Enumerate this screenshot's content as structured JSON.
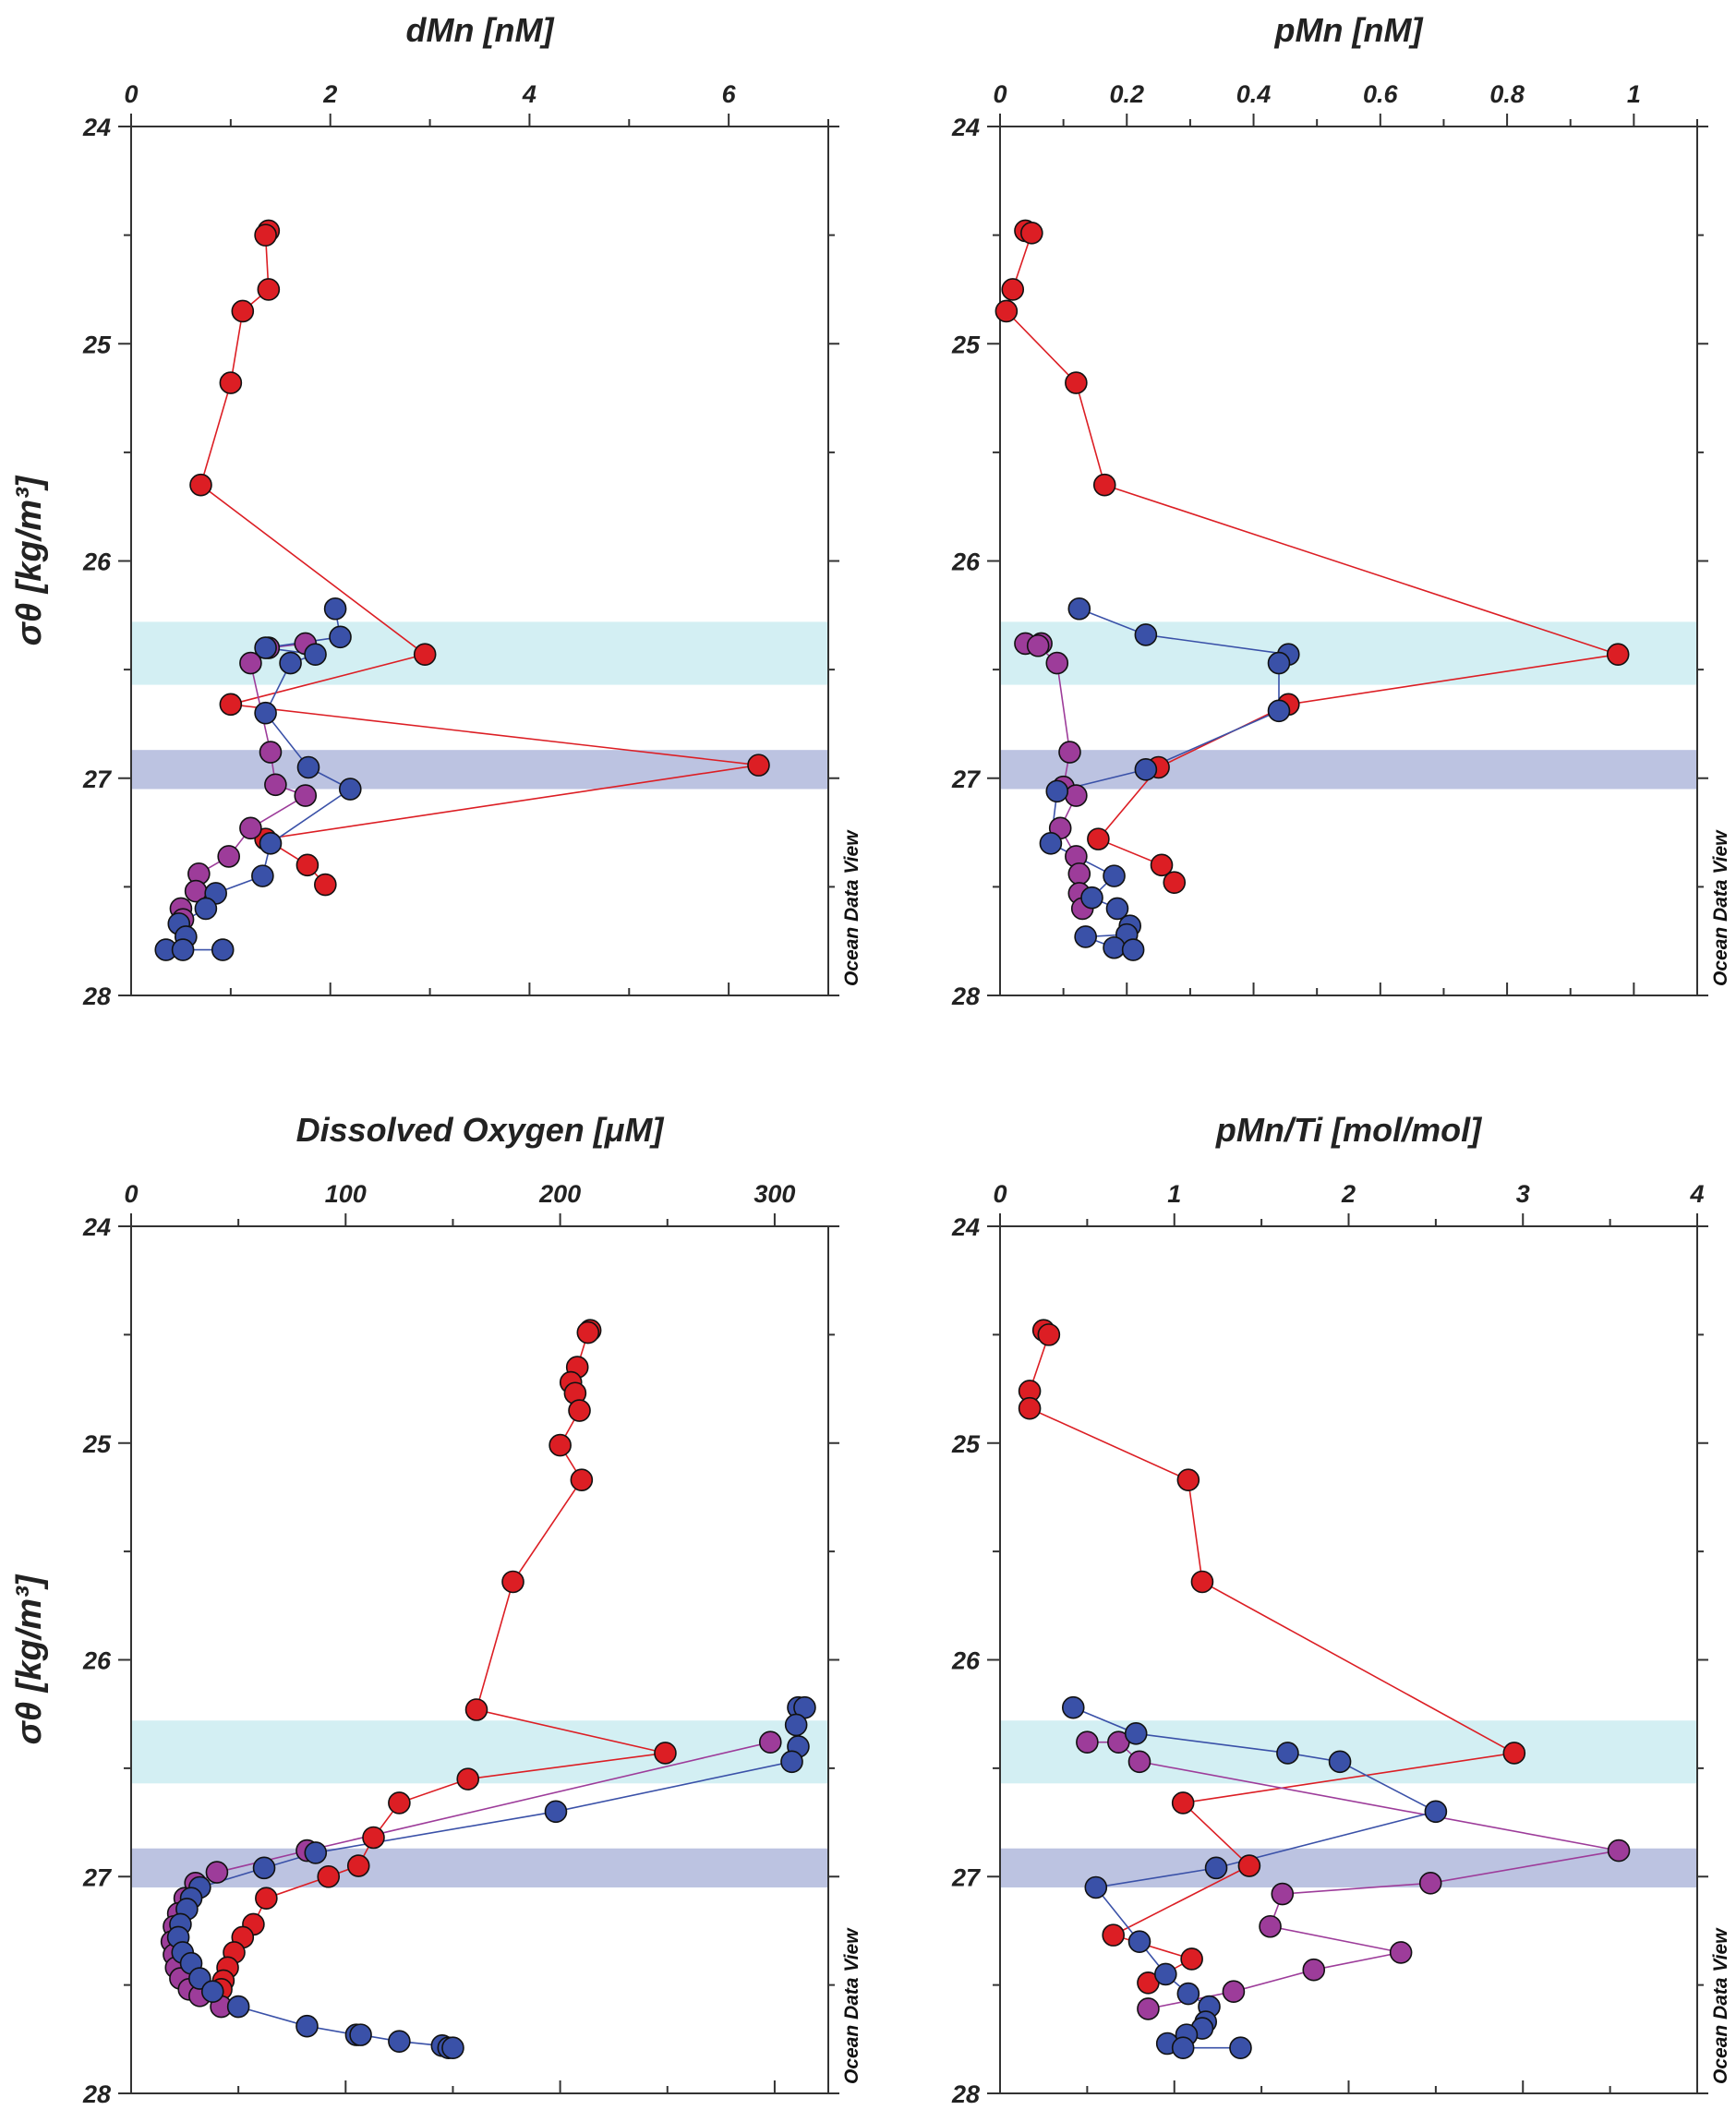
{
  "chart_data": [
    {
      "type": "scatter",
      "title": "dMn [nM]",
      "xlabel": "dMn [nM]",
      "ylabel": "σθ [kg/m³]",
      "xlim": [
        0,
        7
      ],
      "ylim": [
        24,
        28
      ],
      "xticks": [
        "0",
        "2",
        "4",
        "6"
      ],
      "xtick_values": [
        0,
        2,
        4,
        6
      ],
      "yticks": [
        "24",
        "25",
        "26",
        "27",
        "28"
      ],
      "credit": "Ocean Data View",
      "bands": [
        {
          "y0": 26.28,
          "y1": 26.57,
          "color": "#d3eff3"
        },
        {
          "y0": 26.87,
          "y1": 27.05,
          "color": "#bcc3e1"
        }
      ],
      "series": [
        {
          "name": "red",
          "color": "#dc1e24",
          "points": [
            [
              1.38,
              24.48
            ],
            [
              1.35,
              24.5
            ],
            [
              1.38,
              24.75
            ],
            [
              1.12,
              24.85
            ],
            [
              1.0,
              25.18
            ],
            [
              0.7,
              25.65
            ],
            [
              2.95,
              26.43
            ],
            [
              1.0,
              26.66
            ],
            [
              6.3,
              26.94
            ],
            [
              1.35,
              27.28
            ],
            [
              1.77,
              27.4
            ],
            [
              1.95,
              27.49
            ]
          ]
        },
        {
          "name": "purple",
          "color": "#9d3c9a",
          "points": [
            [
              1.75,
              26.38
            ],
            [
              1.38,
              26.4
            ],
            [
              1.2,
              26.47
            ],
            [
              1.4,
              26.88
            ],
            [
              1.45,
              27.03
            ],
            [
              1.75,
              27.08
            ],
            [
              1.2,
              27.23
            ],
            [
              0.98,
              27.36
            ],
            [
              0.68,
              27.44
            ],
            [
              0.65,
              27.52
            ],
            [
              0.5,
              27.6
            ],
            [
              0.52,
              27.65
            ]
          ]
        },
        {
          "name": "blue",
          "color": "#3a51a8",
          "points": [
            [
              2.05,
              26.22
            ],
            [
              2.1,
              26.35
            ],
            [
              1.35,
              26.4
            ],
            [
              1.85,
              26.43
            ],
            [
              1.6,
              26.47
            ],
            [
              1.35,
              26.7
            ],
            [
              1.78,
              26.95
            ],
            [
              2.2,
              27.05
            ],
            [
              1.4,
              27.3
            ],
            [
              1.32,
              27.45
            ],
            [
              0.85,
              27.53
            ],
            [
              0.75,
              27.6
            ],
            [
              0.48,
              27.67
            ],
            [
              0.55,
              27.73
            ],
            [
              0.35,
              27.79
            ],
            [
              0.52,
              27.79
            ],
            [
              0.92,
              27.79
            ]
          ]
        }
      ]
    },
    {
      "type": "scatter",
      "title": "pMn [nM]",
      "xlabel": "pMn [nM]",
      "ylabel": "",
      "xlim": [
        0,
        1.1
      ],
      "ylim": [
        24,
        28
      ],
      "xticks": [
        "0",
        "0.2",
        "0.4",
        "0.6",
        "0.8",
        "1"
      ],
      "xtick_values": [
        0,
        0.2,
        0.4,
        0.6,
        0.8,
        1.0
      ],
      "yticks": [
        "24",
        "25",
        "26",
        "27",
        "28"
      ],
      "credit": "Ocean Data View",
      "bands": [
        {
          "y0": 26.28,
          "y1": 26.57,
          "color": "#d3eff3"
        },
        {
          "y0": 26.87,
          "y1": 27.05,
          "color": "#bcc3e1"
        }
      ],
      "series": [
        {
          "name": "red",
          "color": "#dc1e24",
          "points": [
            [
              0.04,
              24.48
            ],
            [
              0.05,
              24.49
            ],
            [
              0.02,
              24.75
            ],
            [
              0.01,
              24.85
            ],
            [
              0.12,
              25.18
            ],
            [
              0.165,
              25.65
            ],
            [
              0.975,
              26.43
            ],
            [
              0.455,
              26.66
            ],
            [
              0.25,
              26.95
            ],
            [
              0.155,
              27.28
            ],
            [
              0.255,
              27.4
            ],
            [
              0.275,
              27.48
            ]
          ]
        },
        {
          "name": "purple",
          "color": "#9d3c9a",
          "points": [
            [
              0.04,
              26.38
            ],
            [
              0.065,
              26.38
            ],
            [
              0.06,
              26.39
            ],
            [
              0.09,
              26.47
            ],
            [
              0.11,
              26.88
            ],
            [
              0.1,
              27.04
            ],
            [
              0.12,
              27.08
            ],
            [
              0.095,
              27.23
            ],
            [
              0.12,
              27.36
            ],
            [
              0.125,
              27.44
            ],
            [
              0.125,
              27.53
            ],
            [
              0.13,
              27.6
            ]
          ]
        },
        {
          "name": "blue",
          "color": "#3a51a8",
          "points": [
            [
              0.125,
              26.22
            ],
            [
              0.23,
              26.34
            ],
            [
              0.455,
              26.43
            ],
            [
              0.44,
              26.47
            ],
            [
              0.44,
              26.69
            ],
            [
              0.23,
              26.96
            ],
            [
              0.09,
              27.06
            ],
            [
              0.08,
              27.3
            ],
            [
              0.18,
              27.45
            ],
            [
              0.145,
              27.55
            ],
            [
              0.185,
              27.6
            ],
            [
              0.205,
              27.68
            ],
            [
              0.2,
              27.72
            ],
            [
              0.135,
              27.73
            ],
            [
              0.18,
              27.78
            ],
            [
              0.21,
              27.79
            ]
          ]
        }
      ]
    },
    {
      "type": "scatter",
      "title": "Dissolved Oxygen [μM]",
      "xlabel": "Dissolved Oxygen [μM]",
      "ylabel": "σθ [kg/m³]",
      "xlim": [
        0,
        325
      ],
      "ylim": [
        24,
        28
      ],
      "xticks": [
        "0",
        "100",
        "200",
        "300"
      ],
      "xtick_values": [
        0,
        100,
        200,
        300
      ],
      "yticks": [
        "24",
        "25",
        "26",
        "27",
        "28"
      ],
      "credit": "Ocean Data View",
      "bands": [
        {
          "y0": 26.28,
          "y1": 26.57,
          "color": "#d3eff3"
        },
        {
          "y0": 26.87,
          "y1": 27.05,
          "color": "#bcc3e1"
        }
      ],
      "series": [
        {
          "name": "red",
          "color": "#dc1e24",
          "points": [
            [
              214,
              24.48
            ],
            [
              213,
              24.49
            ],
            [
              208,
              24.65
            ],
            [
              205,
              24.72
            ],
            [
              207,
              24.77
            ],
            [
              209,
              24.85
            ],
            [
              200,
              25.01
            ],
            [
              210,
              25.17
            ],
            [
              178,
              25.64
            ],
            [
              161,
              26.23
            ],
            [
              249,
              26.43
            ],
            [
              157,
              26.55
            ],
            [
              125,
              26.66
            ],
            [
              113,
              26.82
            ],
            [
              106,
              26.95
            ],
            [
              92,
              27.0
            ],
            [
              63,
              27.1
            ],
            [
              57,
              27.22
            ],
            [
              52,
              27.28
            ],
            [
              48,
              27.35
            ],
            [
              45,
              27.42
            ],
            [
              43,
              27.48
            ],
            [
              42,
              27.52
            ]
          ]
        },
        {
          "name": "purple",
          "color": "#9d3c9a",
          "points": [
            [
              298,
              26.38
            ],
            [
              82,
              26.88
            ],
            [
              40,
              26.98
            ],
            [
              30,
              27.03
            ],
            [
              25,
              27.1
            ],
            [
              22,
              27.17
            ],
            [
              20,
              27.23
            ],
            [
              19,
              27.3
            ],
            [
              20,
              27.36
            ],
            [
              21,
              27.42
            ],
            [
              23,
              27.47
            ],
            [
              27,
              27.52
            ],
            [
              32,
              27.55
            ],
            [
              42,
              27.6
            ]
          ]
        },
        {
          "name": "blue",
          "color": "#3a51a8",
          "points": [
            [
              311,
              26.22
            ],
            [
              314,
              26.22
            ],
            [
              310,
              26.3
            ],
            [
              311,
              26.4
            ],
            [
              308,
              26.47
            ],
            [
              198,
              26.7
            ],
            [
              86,
              26.89
            ],
            [
              62,
              26.96
            ],
            [
              32,
              27.05
            ],
            [
              28,
              27.1
            ],
            [
              26,
              27.15
            ],
            [
              23,
              27.22
            ],
            [
              22,
              27.28
            ],
            [
              24,
              27.35
            ],
            [
              28,
              27.4
            ],
            [
              32,
              27.47
            ],
            [
              38,
              27.53
            ],
            [
              50,
              27.6
            ],
            [
              82,
              27.69
            ],
            [
              105,
              27.73
            ],
            [
              107,
              27.73
            ],
            [
              125,
              27.76
            ],
            [
              145,
              27.78
            ],
            [
              148,
              27.79
            ],
            [
              150,
              27.79
            ]
          ]
        }
      ]
    },
    {
      "type": "scatter",
      "title": "pMn/Ti [mol/mol]",
      "xlabel": "pMn/Ti [mol/mol]",
      "ylabel": "",
      "xlim": [
        0,
        4
      ],
      "ylim": [
        24,
        28
      ],
      "xticks": [
        "0",
        "1",
        "2",
        "3",
        "4"
      ],
      "xtick_values": [
        0,
        1,
        2,
        3,
        4
      ],
      "yticks": [
        "24",
        "25",
        "26",
        "27",
        "28"
      ],
      "credit": "Ocean Data View",
      "bands": [
        {
          "y0": 26.28,
          "y1": 26.57,
          "color": "#d3eff3"
        },
        {
          "y0": 26.87,
          "y1": 27.05,
          "color": "#bcc3e1"
        }
      ],
      "series": [
        {
          "name": "red",
          "color": "#dc1e24",
          "points": [
            [
              0.25,
              24.48
            ],
            [
              0.28,
              24.5
            ],
            [
              0.17,
              24.76
            ],
            [
              0.17,
              24.84
            ],
            [
              1.08,
              25.17
            ],
            [
              1.16,
              25.64
            ],
            [
              2.95,
              26.43
            ],
            [
              1.05,
              26.66
            ],
            [
              1.43,
              26.95
            ],
            [
              0.65,
              27.27
            ],
            [
              1.1,
              27.38
            ],
            [
              0.85,
              27.49
            ]
          ]
        },
        {
          "name": "purple",
          "color": "#9d3c9a",
          "points": [
            [
              0.5,
              26.38
            ],
            [
              0.68,
              26.38
            ],
            [
              0.8,
              26.47
            ],
            [
              3.55,
              26.88
            ],
            [
              2.47,
              27.03
            ],
            [
              1.62,
              27.08
            ],
            [
              1.55,
              27.23
            ],
            [
              2.3,
              27.35
            ],
            [
              1.8,
              27.43
            ],
            [
              1.34,
              27.53
            ],
            [
              0.85,
              27.61
            ]
          ]
        },
        {
          "name": "blue",
          "color": "#3a51a8",
          "points": [
            [
              0.42,
              26.22
            ],
            [
              0.78,
              26.34
            ],
            [
              1.65,
              26.43
            ],
            [
              1.95,
              26.47
            ],
            [
              2.5,
              26.7
            ],
            [
              1.24,
              26.96
            ],
            [
              0.55,
              27.05
            ],
            [
              0.8,
              27.3
            ],
            [
              0.95,
              27.45
            ],
            [
              1.08,
              27.54
            ],
            [
              1.2,
              27.6
            ],
            [
              1.18,
              27.67
            ],
            [
              1.16,
              27.7
            ],
            [
              1.07,
              27.73
            ],
            [
              0.96,
              27.77
            ],
            [
              1.05,
              27.79
            ],
            [
              1.38,
              27.79
            ]
          ]
        }
      ]
    }
  ]
}
